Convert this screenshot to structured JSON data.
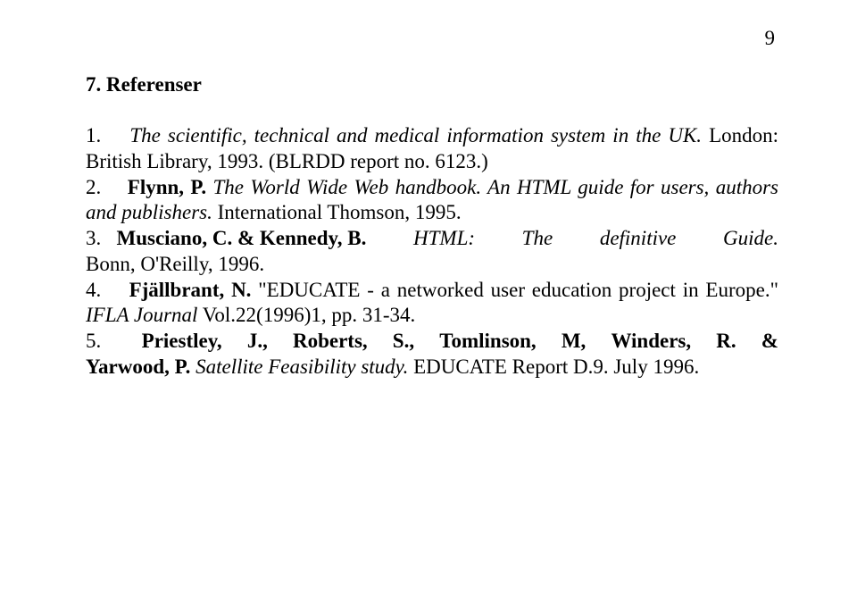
{
  "page_number": "9",
  "heading": "7. Referenser",
  "refs": {
    "r1": {
      "num": "1.",
      "t1": "The scientific, technical and medical information system in the UK.",
      "t2": " London: British Library, 1993. (BLRDD report no. 6123.)"
    },
    "r2": {
      "num": "2.",
      "author": "Flynn, P.",
      "title": " The World Wide Web handbook. An HTML guide for users, authors and publishers.",
      "rest": " International Thomson, 1995."
    },
    "r3": {
      "num": "3.",
      "author": "Musciano, C. & Kennedy, B.",
      "title_words": [
        "HTML:",
        "The",
        "definitive",
        "Guide."
      ],
      "rest": "Bonn, O'Reilly, 1996."
    },
    "r4": {
      "num": "4.",
      "author": "Fjällbrant, N.",
      "t1": " \"EDUCATE - a networked user education project in Europe.\" ",
      "journal": "IFLA Journal",
      "t2": "  Vol.22(1996)1, pp. 31-34."
    },
    "r5": {
      "num": "5.",
      "authors_words": [
        "Priestley,",
        "J.,",
        "Roberts,",
        "S.,",
        "Tomlinson,",
        "M,",
        "Winders,",
        "R.",
        "&"
      ],
      "author2": "Yarwood, P.",
      "title": " Satellite Feasibility study.",
      "rest": " EDUCATE Report D.9. July 1996."
    }
  }
}
